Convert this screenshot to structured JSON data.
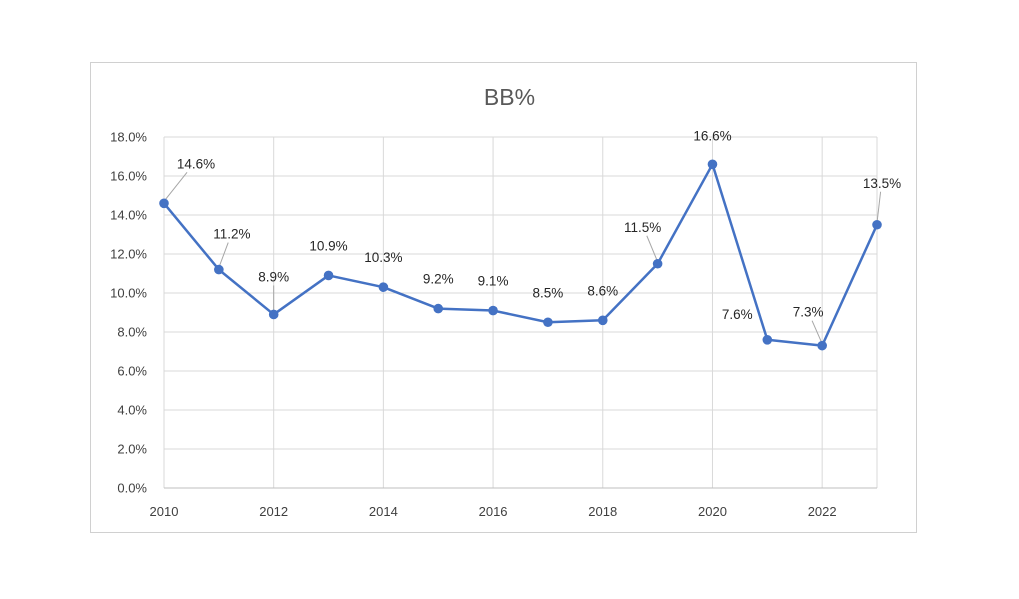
{
  "chart_data": {
    "type": "line",
    "title": "BB%",
    "xlabel": "",
    "ylabel": "",
    "x": [
      2010,
      2011,
      2012,
      2013,
      2014,
      2015,
      2016,
      2017,
      2018,
      2019,
      2020,
      2021,
      2022,
      2023
    ],
    "values": [
      14.6,
      11.2,
      8.9,
      10.9,
      10.3,
      9.2,
      9.1,
      8.5,
      8.6,
      11.5,
      16.6,
      7.6,
      7.3,
      13.5
    ],
    "data_labels": [
      "14.6%",
      "11.2%",
      "8.9%",
      "10.9%",
      "10.3%",
      "9.2%",
      "9.1%",
      "8.5%",
      "8.6%",
      "11.5%",
      "16.6%",
      "7.6%",
      "7.3%",
      "13.5%"
    ],
    "ylim": [
      0,
      18
    ],
    "xlim": [
      2010,
      2023
    ],
    "y_ticks": [
      "0.0%",
      "2.0%",
      "4.0%",
      "6.0%",
      "8.0%",
      "10.0%",
      "12.0%",
      "14.0%",
      "16.0%",
      "18.0%"
    ],
    "y_tick_values": [
      0,
      2,
      4,
      6,
      8,
      10,
      12,
      14,
      16,
      18
    ],
    "x_ticks": [
      "2010",
      "2012",
      "2014",
      "2016",
      "2018",
      "2020",
      "2022"
    ],
    "x_tick_values": [
      2010,
      2012,
      2014,
      2016,
      2018,
      2020,
      2022
    ],
    "grid": true,
    "legend": "none",
    "line_color": "#4472C4",
    "grid_color": "#d9d9d9"
  }
}
